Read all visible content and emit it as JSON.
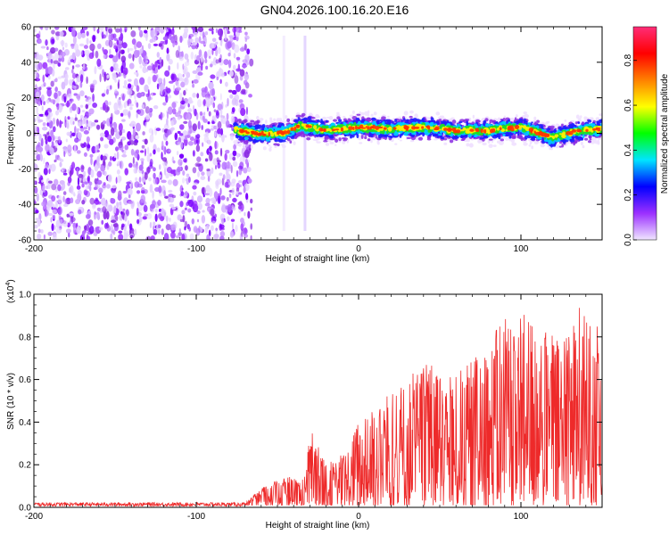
{
  "title": "GN04.2026.100.16.20.E16",
  "chart_data": [
    {
      "type": "heatmap",
      "name": "spectrogram",
      "xlabel": "Height of straight line (km)",
      "ylabel": "Frequency (Hz)",
      "xlim": [
        -200,
        150
      ],
      "ylim": [
        -60,
        60
      ],
      "x_ticks": [
        -200,
        -100,
        0,
        100
      ],
      "y_ticks": [
        60,
        40,
        20,
        0,
        -20,
        -40,
        -60
      ],
      "x_tick_labels": [
        "-200",
        "-100",
        "0",
        "100"
      ],
      "y_tick_labels": [
        "60",
        "40",
        "20",
        "0",
        "-20",
        "-40",
        "-60"
      ],
      "noise_region_km": [
        -200,
        -66
      ],
      "signal_region_km": [
        -76,
        150
      ],
      "signal_band_hz": [
        -5,
        8
      ],
      "signal_center_track": [
        {
          "x": -75,
          "y": 0
        },
        {
          "x": -60,
          "y": -2
        },
        {
          "x": -45,
          "y": -1
        },
        {
          "x": -35,
          "y": 3
        },
        {
          "x": -20,
          "y": 0
        },
        {
          "x": 0,
          "y": 2
        },
        {
          "x": 20,
          "y": 1
        },
        {
          "x": 40,
          "y": 2
        },
        {
          "x": 60,
          "y": 0
        },
        {
          "x": 80,
          "y": 0
        },
        {
          "x": 100,
          "y": 2
        },
        {
          "x": 120,
          "y": -4
        },
        {
          "x": 135,
          "y": 0
        },
        {
          "x": 150,
          "y": 1
        }
      ]
    },
    {
      "type": "colorbar",
      "name": "amplitude-scale",
      "label": "Normalized spectral amplitude",
      "range": [
        0.0,
        0.95
      ],
      "ticks": [
        0.0,
        0.2,
        0.4,
        0.6,
        0.8
      ],
      "tick_labels": [
        "0.0",
        "0.2",
        "0.4",
        "0.6",
        "0.8"
      ],
      "colors": [
        "#f0e6ff",
        "#9b30ff",
        "#0000ff",
        "#00e5ff",
        "#00ff00",
        "#ffff00",
        "#ff8000",
        "#ff0000",
        "#ff2d78"
      ]
    },
    {
      "type": "line",
      "name": "snr",
      "xlabel": "Height of straight line (km)",
      "ylabel": "SNR (10 * v/v)",
      "scale_label": "(x10",
      "scale_exponent": "4",
      "scale_close": ")",
      "xlim": [
        -200,
        150
      ],
      "ylim": [
        0,
        1.0
      ],
      "x_ticks": [
        -200,
        -100,
        0,
        100
      ],
      "y_ticks": [
        0.0,
        0.2,
        0.4,
        0.6,
        0.8,
        1.0
      ],
      "x_tick_labels": [
        "-200",
        "-100",
        "0",
        "100"
      ],
      "y_tick_labels": [
        "0.0",
        "0.2",
        "0.4",
        "0.6",
        "0.8",
        "1.0"
      ],
      "line_color": "#ee2a2a",
      "envelope": [
        {
          "x": -200,
          "y": 0.02
        },
        {
          "x": -70,
          "y": 0.02
        },
        {
          "x": -60,
          "y": 0.09
        },
        {
          "x": -45,
          "y": 0.15
        },
        {
          "x": -35,
          "y": 0.12
        },
        {
          "x": -29,
          "y": 0.36
        },
        {
          "x": -20,
          "y": 0.2
        },
        {
          "x": -10,
          "y": 0.25
        },
        {
          "x": 0,
          "y": 0.4
        },
        {
          "x": 10,
          "y": 0.48
        },
        {
          "x": 20,
          "y": 0.58
        },
        {
          "x": 40,
          "y": 0.68
        },
        {
          "x": 60,
          "y": 0.62
        },
        {
          "x": 80,
          "y": 0.78
        },
        {
          "x": 95,
          "y": 0.96
        },
        {
          "x": 110,
          "y": 0.84
        },
        {
          "x": 125,
          "y": 0.8
        },
        {
          "x": 135,
          "y": 0.95
        },
        {
          "x": 150,
          "y": 0.85
        }
      ]
    }
  ]
}
